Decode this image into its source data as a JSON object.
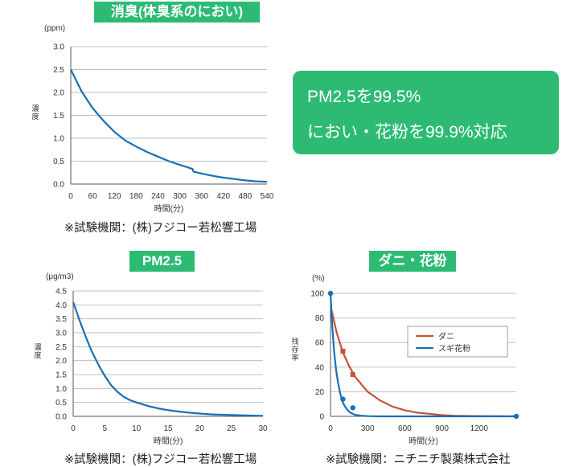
{
  "callout": {
    "line1": "PM2.5を99.5%",
    "line2": "におい・花粉を99.9%対応"
  },
  "colors": {
    "accent": "#2dbb74",
    "curve": "#1a6fb5",
    "mite": "#c4513a",
    "grid": "#bfbfbf"
  },
  "chart_data": [
    {
      "type": "line",
      "title": "消臭(体臭系のにおい)",
      "unit": "(ppm)",
      "ylabel": "濃度",
      "xlabel": "時間(分)",
      "xlim": [
        0,
        540
      ],
      "ylim": [
        0,
        3
      ],
      "xticks": [
        "0",
        "60",
        "120",
        "180",
        "240",
        "300",
        "360",
        "420",
        "480",
        "540"
      ],
      "yticks": [
        "0.0",
        "0.5",
        "1.0",
        "1.5",
        "2.0",
        "2.5",
        "3.0"
      ],
      "grid": true,
      "series": [
        {
          "x": [
            0,
            30,
            60,
            90,
            120,
            150,
            180,
            210,
            240,
            270,
            300,
            335,
            338,
            360,
            390,
            420,
            450,
            480,
            510,
            540
          ],
          "values": [
            2.5,
            2.02,
            1.66,
            1.38,
            1.14,
            0.95,
            0.82,
            0.7,
            0.6,
            0.5,
            0.42,
            0.33,
            0.27,
            0.23,
            0.18,
            0.14,
            0.11,
            0.08,
            0.06,
            0.05
          ]
        }
      ],
      "source": "※試験機関：(株)フジコー若松響工場"
    },
    {
      "type": "line",
      "title": "PM2.5",
      "unit": "(μg/m3)",
      "ylabel": "濃度",
      "xlabel": "時間(分)",
      "xlim": [
        0,
        30
      ],
      "ylim": [
        0,
        4.5
      ],
      "xticks": [
        "0",
        "5",
        "10",
        "15",
        "20",
        "25",
        "30"
      ],
      "yticks": [
        "0.0",
        "0.5",
        "1.0",
        "1.5",
        "2.0",
        "2.5",
        "3.0",
        "3.5",
        "4.0",
        "4.5"
      ],
      "grid": true,
      "series": [
        {
          "x": [
            0,
            1,
            2,
            3,
            4,
            5,
            6,
            7,
            8,
            9,
            10,
            12,
            14,
            16,
            18,
            20,
            22,
            25,
            28,
            30
          ],
          "values": [
            4.1,
            3.45,
            2.85,
            2.3,
            1.85,
            1.45,
            1.12,
            0.88,
            0.7,
            0.58,
            0.5,
            0.36,
            0.26,
            0.19,
            0.14,
            0.1,
            0.07,
            0.05,
            0.03,
            0.02
          ]
        }
      ],
      "source": "※試験機関：(株)フジコー若松響工場"
    },
    {
      "type": "line",
      "title": "ダニ・花粉",
      "unit": "(%)",
      "ylabel": "残存率",
      "xlabel": "時間(分)",
      "xlim": [
        0,
        1500
      ],
      "ylim": [
        0,
        100
      ],
      "xticks": [
        "0",
        "300",
        "600",
        "900",
        "1200"
      ],
      "yticks": [
        "0",
        "20",
        "40",
        "60",
        "80",
        "100"
      ],
      "grid": true,
      "legend": "center-right",
      "series": [
        {
          "name": "ダニ",
          "x": [
            0,
            50,
            100,
            150,
            200,
            300,
            400,
            500,
            600,
            700,
            800,
            900,
            1000,
            1200,
            1400,
            1500
          ],
          "values": [
            90,
            68,
            52,
            41,
            32,
            20,
            13,
            8,
            5,
            3,
            2,
            1,
            0.5,
            0.2,
            0.1,
            0
          ],
          "markers": {
            "shape": "square",
            "x": [
              100,
              180
            ],
            "values": [
              53,
              34
            ]
          }
        },
        {
          "name": "スギ花粉",
          "x": [
            0,
            15,
            30,
            45,
            60,
            80,
            100,
            130,
            160,
            200,
            250,
            300,
            400,
            600,
            900,
            1200,
            1500
          ],
          "values": [
            100,
            72,
            52,
            38,
            28,
            18,
            11,
            6,
            3,
            1.2,
            0.5,
            0.2,
            0,
            0,
            0,
            0,
            0
          ],
          "markers": {
            "shape": "circle",
            "x": [
              0,
              100,
              180,
              1500
            ],
            "values": [
              100,
              14,
              7,
              0
            ]
          }
        }
      ],
      "source": "※試験機関：ニチニチ製薬株式会社"
    }
  ]
}
